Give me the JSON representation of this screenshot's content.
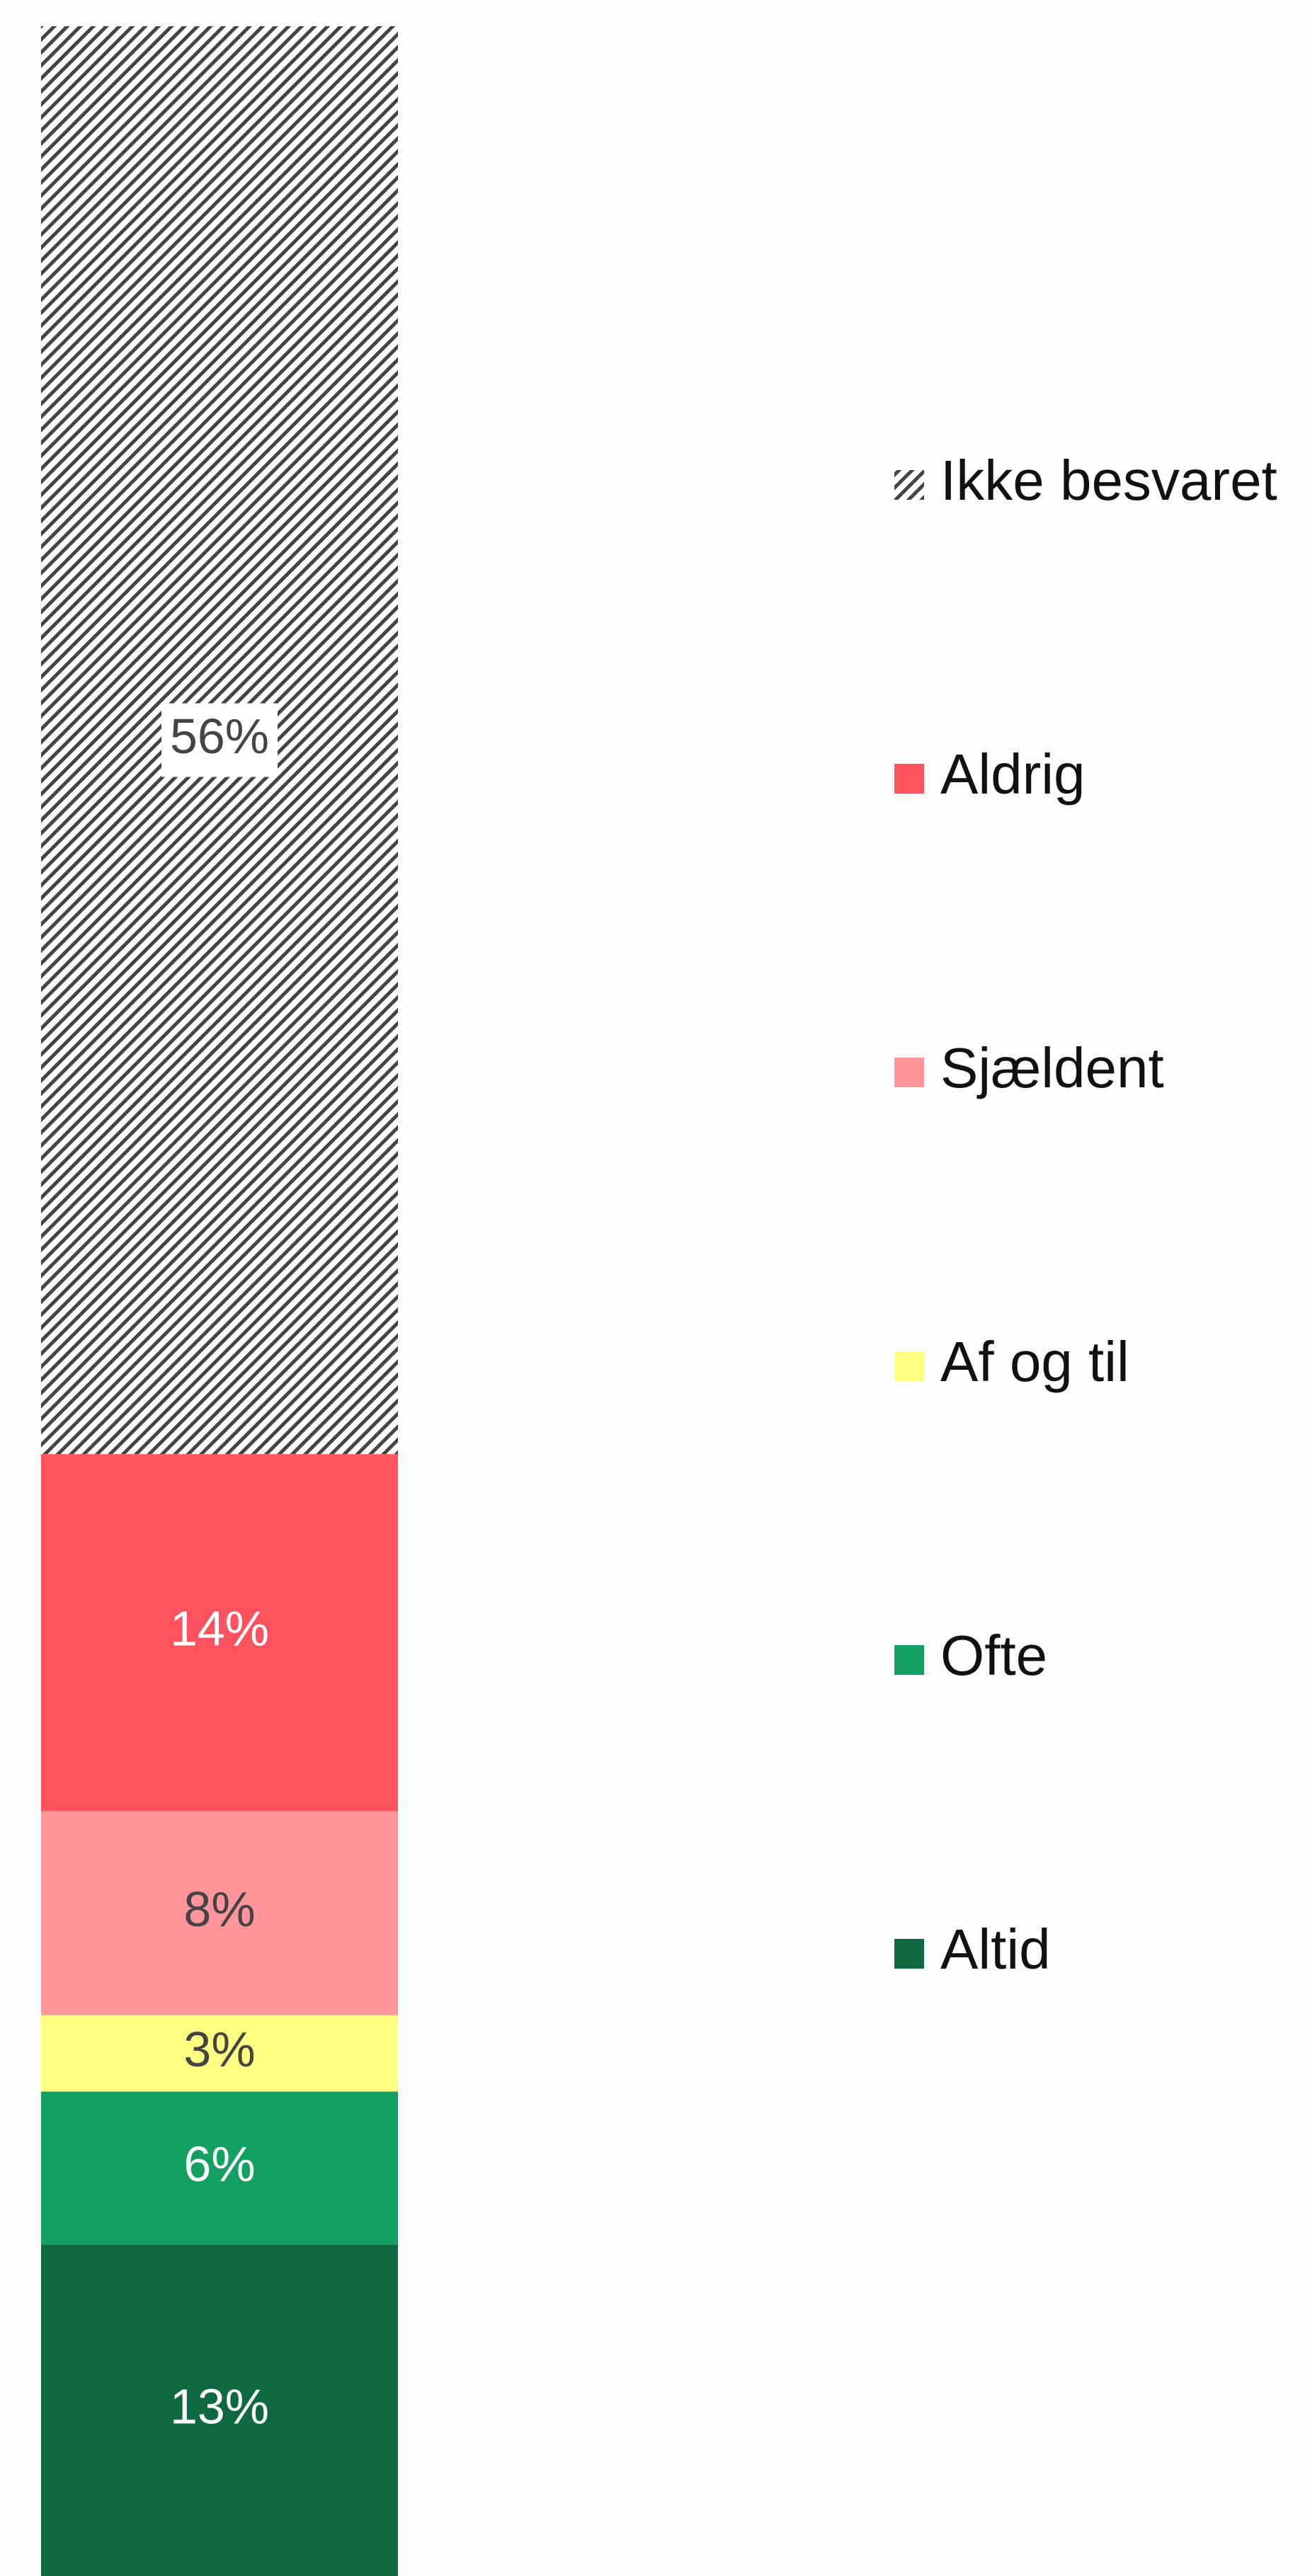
{
  "chart_data": {
    "type": "bar",
    "stacked": true,
    "ylim": [
      0,
      100
    ],
    "series": [
      {
        "name": "Altid",
        "color": "#0e6943",
        "values": [
          13
        ],
        "value_labels": [
          "13%"
        ]
      },
      {
        "name": "Ofte",
        "color": "#14a060",
        "values": [
          6
        ],
        "value_labels": [
          "6%"
        ]
      },
      {
        "name": "Af og til",
        "color": "#fefe80",
        "values": [
          3
        ],
        "value_labels": [
          "3%"
        ]
      },
      {
        "name": "Sjældent",
        "color": "#ff949a",
        "values": [
          8
        ],
        "value_labels": [
          "8%"
        ]
      },
      {
        "name": "Aldrig",
        "color": "#ff525f",
        "values": [
          14
        ],
        "value_labels": [
          "14%"
        ]
      },
      {
        "name": "Ikke besvaret",
        "color": "#444444",
        "pattern": "hatch",
        "values": [
          56
        ],
        "value_labels": [
          "56%"
        ]
      }
    ],
    "legend": "right"
  }
}
